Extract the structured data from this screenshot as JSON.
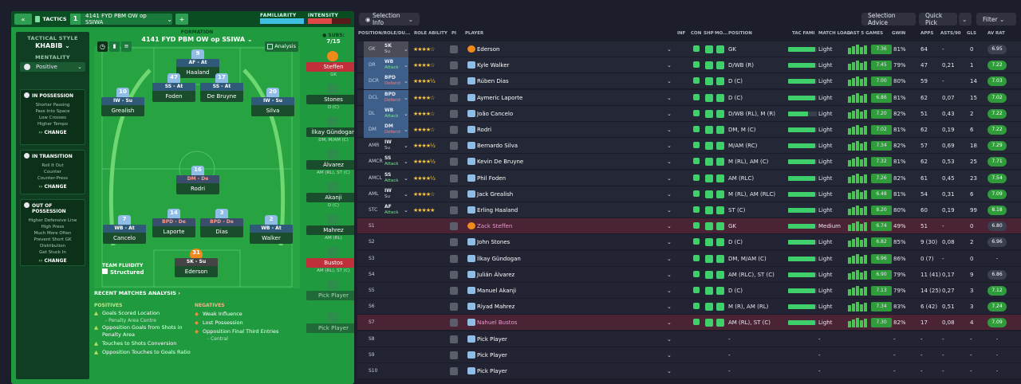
{
  "tactics": {
    "tab_label": "TACTICS",
    "slot_number": "1",
    "tactic_name": "4141 FYD PBM OW op SSIWA",
    "familiarity_label": "FAMILIARITY",
    "intensity_label": "INTENSITY",
    "familiarity_level": 0.95,
    "intensity_level": 0.55
  },
  "sidebar": {
    "style_label": "TACTICAL STYLE",
    "style_value": "KHABIB",
    "mentality_label": "MENTALITY",
    "mentality_value": "Positive",
    "in_possession": {
      "title": "IN POSSESSION",
      "items": [
        "Shorter Passing",
        "Pass Into Space",
        "Low Crosses",
        "Higher Tempo"
      ],
      "change": "CHANGE"
    },
    "in_transition": {
      "title": "IN TRANSITION",
      "items": [
        "Roll It Out",
        "Counter",
        "Counter-Press"
      ],
      "change": "CHANGE"
    },
    "out_of_possession": {
      "title": "OUT OF POSSESSION",
      "items": [
        "Higher Defensive Line",
        "High Press",
        "Much More Often",
        "Prevent Short GK",
        "Distribution",
        "Get Stuck In"
      ],
      "change": "CHANGE"
    }
  },
  "formation": {
    "label": "FORMATION",
    "name": "4141 FYD PBM OW op SSIWA",
    "analysis": "Analysis",
    "subs_label": "SUBS:",
    "subs_count": "7/15",
    "players": [
      {
        "num": "9",
        "role": "AF - At",
        "name": "Haaland"
      },
      {
        "num": "10",
        "role": "IW - Su",
        "name": "Grealish"
      },
      {
        "num": "47",
        "role": "SS - At",
        "name": "Foden"
      },
      {
        "num": "17",
        "role": "SS - At",
        "name": "De Bruyne"
      },
      {
        "num": "20",
        "role": "IW - Su",
        "name": "Silva"
      },
      {
        "num": "16",
        "role": "DM - De",
        "name": "Rodri"
      },
      {
        "num": "7",
        "role": "WB - At",
        "name": "Cancelo"
      },
      {
        "num": "14",
        "role": "BPD - De",
        "name": "Laporte"
      },
      {
        "num": "3",
        "role": "BPD - De",
        "name": "Dias"
      },
      {
        "num": "2",
        "role": "WB - At",
        "name": "Walker"
      },
      {
        "num": "31",
        "role": "SK - Su",
        "name": "Ederson"
      }
    ],
    "team_fluidity_label": "TEAM FLUIDITY",
    "team_fluidity": "Structured"
  },
  "subs": [
    {
      "name": "Steffen",
      "pos": "GK"
    },
    {
      "name": "Stones",
      "pos": "D (C)"
    },
    {
      "name": "İlkay Gündogan",
      "pos": "DM, M/AM (C)"
    },
    {
      "name": "Álvarez",
      "pos": "AM (RL), ST (C)"
    },
    {
      "name": "Akanji",
      "pos": "D (C)"
    },
    {
      "name": "Mahrez",
      "pos": "AM (RL)"
    },
    {
      "name": "Bustos",
      "pos": "AM (RL), ST (C)"
    },
    {
      "name": "Pick Player",
      "pos": ""
    },
    {
      "name": "Pick Player",
      "pos": ""
    }
  ],
  "analysis": {
    "title": "RECENT MATCHES ANALYSIS ›",
    "positives_label": "POSITIVES",
    "negatives_label": "NEGATIVES",
    "positives": [
      "Goals Scored Location",
      "- Penalty Area Centre",
      "Opposition Goals from Shots in Penalty Area",
      "Touches to Shots Conversion",
      "Opposition Touches to Goals Ratio"
    ],
    "negatives": [
      "Weak Influence",
      "Lost Possession",
      "Opposition Final Third Entries",
      "- Central"
    ]
  },
  "toolbar": {
    "selection_info": "Selection Info",
    "selection_advice": "Selection Advice",
    "quick_pick": "Quick Pick",
    "filter": "Filter"
  },
  "table": {
    "headers": [
      "POSITION/ROLE/DU...",
      "ROLE ABILITY",
      "PI",
      "PLAYER",
      "INF",
      "CON",
      "SHP",
      "MO...",
      "POSITION",
      "TAC FAMI",
      "MATCH LOAD",
      "LAST 5 GAMES",
      "GWIN",
      "APPS",
      "ASTS/90",
      "GLS",
      "AV RAT"
    ],
    "rows": [
      {
        "pos": "GK",
        "role": "SK",
        "duty": "Su",
        "stars": "★★★★☆",
        "player": "Ederson",
        "position": "GK",
        "tf": 0.95,
        "load": "Light",
        "gw": "7.36",
        "gwin": "81%",
        "apps": "64",
        "asts": "-",
        "gls": "0",
        "av": "6.95",
        "avcolor": "#3c4050"
      },
      {
        "pos": "DR",
        "role": "WB",
        "duty": "Attack",
        "stars": "★★★★☆",
        "player": "Kyle Walker",
        "position": "D/WB (R)",
        "tf": 0.95,
        "load": "Light",
        "gw": "7.45",
        "gwin": "79%",
        "apps": "47",
        "asts": "0,21",
        "gls": "1",
        "av": "7.22",
        "avcolor": "#2f9b3a"
      },
      {
        "pos": "DCR",
        "role": "BPD",
        "duty": "Defend",
        "stars": "★★★★½",
        "player": "Rúben Dias",
        "position": "D (C)",
        "tf": 0.95,
        "load": "Light",
        "gw": "7.00",
        "gwin": "80%",
        "apps": "59",
        "asts": "-",
        "gls": "14",
        "av": "7.03",
        "avcolor": "#2f9b3a"
      },
      {
        "pos": "DCL",
        "role": "BPD",
        "duty": "Defend",
        "stars": "★★★★☆",
        "player": "Aymeric Laporte",
        "position": "D (C)",
        "tf": 0.95,
        "load": "Light",
        "gw": "6.86",
        "gwin": "81%",
        "apps": "62",
        "asts": "0,07",
        "gls": "15",
        "av": "7.02",
        "avcolor": "#2f9b3a"
      },
      {
        "pos": "DL",
        "role": "WB",
        "duty": "Attack",
        "stars": "★★★★☆",
        "player": "João Cancelo",
        "position": "D/WB (RL), M (R)",
        "tf": 0.7,
        "load": "Light",
        "gw": "7.20",
        "gwin": "82%",
        "apps": "51",
        "asts": "0,43",
        "gls": "2",
        "av": "7.22",
        "avcolor": "#2f9b3a"
      },
      {
        "pos": "DM",
        "role": "DM",
        "duty": "Defend",
        "stars": "★★★★☆",
        "player": "Rodri",
        "position": "DM, M (C)",
        "tf": 0.95,
        "load": "Light",
        "gw": "7.02",
        "gwin": "81%",
        "apps": "62",
        "asts": "0,19",
        "gls": "6",
        "av": "7.22",
        "avcolor": "#2f9b3a"
      },
      {
        "pos": "AMR",
        "role": "IW",
        "duty": "Su",
        "stars": "★★★★½",
        "player": "Bernardo Silva",
        "position": "M/AM (RC)",
        "tf": 0.95,
        "load": "Light",
        "gw": "7.34",
        "gwin": "82%",
        "apps": "57",
        "asts": "0,69",
        "gls": "18",
        "av": "7.29",
        "avcolor": "#2f9b3a"
      },
      {
        "pos": "AMCR",
        "role": "SS",
        "duty": "Attack",
        "stars": "★★★★½",
        "player": "Kevin De Bruyne",
        "position": "M (RL), AM (C)",
        "tf": 0.95,
        "load": "Light",
        "gw": "7.32",
        "gwin": "81%",
        "apps": "62",
        "asts": "0,53",
        "gls": "25",
        "av": "7.71",
        "avcolor": "#2f9b3a"
      },
      {
        "pos": "AMCL",
        "role": "SS",
        "duty": "Attack",
        "stars": "★★★★½",
        "player": "Phil Foden",
        "position": "AM (RLC)",
        "tf": 0.95,
        "load": "Light",
        "gw": "7.26",
        "gwin": "82%",
        "apps": "61",
        "asts": "0,45",
        "gls": "23",
        "av": "7.54",
        "avcolor": "#2f9b3a"
      },
      {
        "pos": "AML",
        "role": "IW",
        "duty": "Su",
        "stars": "★★★★☆",
        "player": "Jack Grealish",
        "position": "M (RL), AM (RLC)",
        "tf": 0.95,
        "load": "Light",
        "gw": "6.48",
        "gwin": "81%",
        "apps": "54",
        "asts": "0,31",
        "gls": "6",
        "av": "7.09",
        "avcolor": "#2f9b3a"
      },
      {
        "pos": "STC",
        "role": "AF",
        "duty": "Attack",
        "stars": "★★★★★",
        "player": "Erling Haaland",
        "position": "ST (C)",
        "tf": 0.95,
        "load": "Light",
        "gw": "8.20",
        "gwin": "80%",
        "apps": "60",
        "asts": "0,19",
        "gls": "99",
        "av": "8.18",
        "avcolor": "#2f9b3a"
      },
      {
        "pos": "S1",
        "role": "",
        "duty": "",
        "stars": "",
        "player": "Zack Steffen",
        "position": "GK",
        "tf": 0.95,
        "load": "Medium",
        "gw": "6.74",
        "gwin": "49%",
        "apps": "51",
        "asts": "-",
        "gls": "0",
        "av": "6.80",
        "avcolor": "#3c4050"
      },
      {
        "pos": "S2",
        "role": "",
        "duty": "",
        "stars": "",
        "player": "John Stones",
        "position": "D (C)",
        "tf": 0.95,
        "load": "Light",
        "gw": "6.82",
        "gwin": "85%",
        "apps": "9 (30)",
        "asts": "0,08",
        "gls": "2",
        "av": "6.96",
        "avcolor": "#3c4050"
      },
      {
        "pos": "S3",
        "role": "",
        "duty": "",
        "stars": "",
        "player": "İlkay Gündogan",
        "position": "DM, M/AM (C)",
        "tf": 0.95,
        "load": "Light",
        "gw": "6.96",
        "gwin": "86%",
        "apps": "0 (7)",
        "asts": "-",
        "gls": "0",
        "av": "-",
        "avcolor": "transparent"
      },
      {
        "pos": "S4",
        "role": "",
        "duty": "",
        "stars": "",
        "player": "Julián Álvarez",
        "position": "AM (RLC), ST (C)",
        "tf": 0.95,
        "load": "Light",
        "gw": "6.90",
        "gwin": "79%",
        "apps": "11 (41)",
        "asts": "0,17",
        "gls": "9",
        "av": "6.86",
        "avcolor": "#3c4050"
      },
      {
        "pos": "S5",
        "role": "",
        "duty": "",
        "stars": "",
        "player": "Manuel Akanji",
        "position": "D (C)",
        "tf": 0.95,
        "load": "Light",
        "gw": "7.13",
        "gwin": "79%",
        "apps": "14 (25)",
        "asts": "0,27",
        "gls": "3",
        "av": "7.12",
        "avcolor": "#2f9b3a"
      },
      {
        "pos": "S6",
        "role": "",
        "duty": "",
        "stars": "",
        "player": "Riyad Mahrez",
        "position": "M (R), AM (RL)",
        "tf": 0.95,
        "load": "Light",
        "gw": "7.34",
        "gwin": "83%",
        "apps": "6 (42)",
        "asts": "0,51",
        "gls": "3",
        "av": "7.24",
        "avcolor": "#2f9b3a"
      },
      {
        "pos": "S7",
        "role": "",
        "duty": "",
        "stars": "",
        "player": "Nahuel Bustos",
        "position": "AM (RL), ST (C)",
        "tf": 0.95,
        "load": "Light",
        "gw": "7.30",
        "gwin": "82%",
        "apps": "17",
        "asts": "0,08",
        "gls": "4",
        "av": "7.09",
        "avcolor": "#2f9b3a"
      },
      {
        "pos": "S8",
        "role": "",
        "duty": "",
        "stars": "",
        "player": "Pick Player",
        "position": "-",
        "tf": 0,
        "load": "-",
        "gw": "",
        "gwin": "-",
        "apps": "-",
        "asts": "-",
        "gls": "-",
        "av": "-",
        "avcolor": "transparent"
      },
      {
        "pos": "S9",
        "role": "",
        "duty": "",
        "stars": "",
        "player": "Pick Player",
        "position": "-",
        "tf": 0,
        "load": "-",
        "gw": "",
        "gwin": "-",
        "apps": "-",
        "asts": "-",
        "gls": "-",
        "av": "-",
        "avcolor": "transparent"
      },
      {
        "pos": "S10",
        "role": "",
        "duty": "",
        "stars": "",
        "player": "Pick Player",
        "position": "-",
        "tf": 0,
        "load": "-",
        "gw": "",
        "gwin": "-",
        "apps": "-",
        "asts": "-",
        "gls": "-",
        "av": "-",
        "avcolor": "transparent"
      }
    ]
  }
}
